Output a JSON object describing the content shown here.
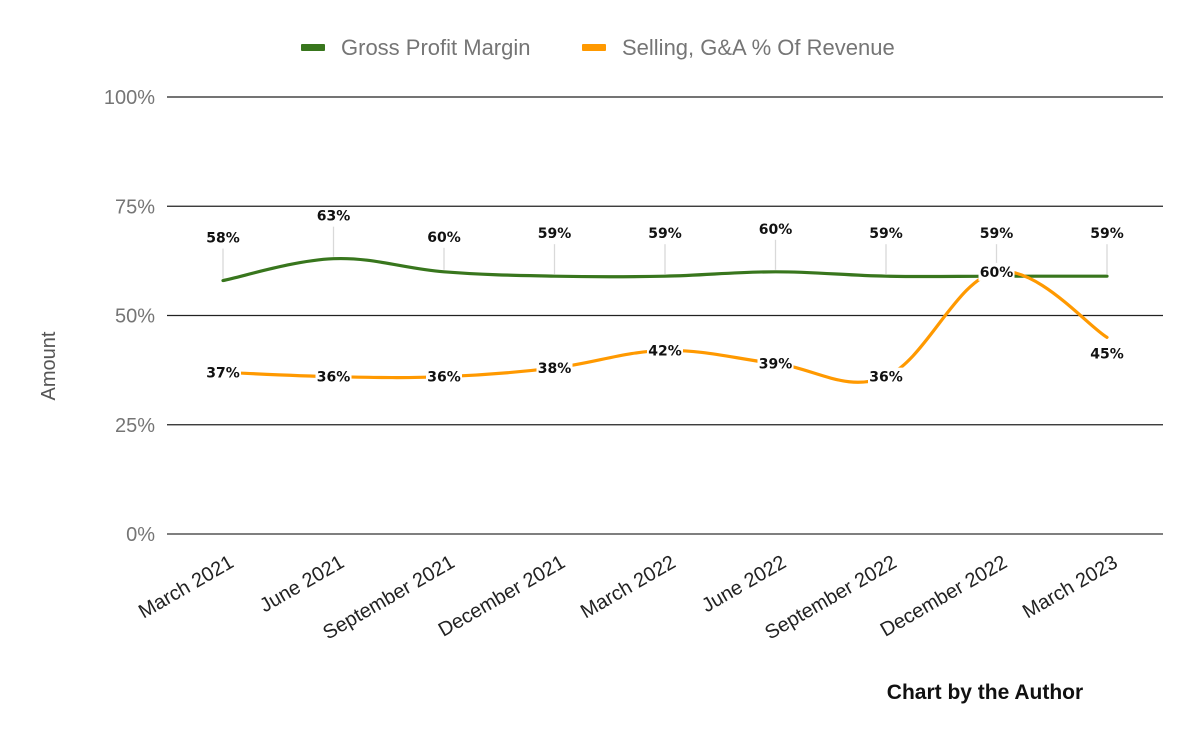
{
  "chart_data": {
    "type": "line",
    "title": "",
    "xlabel": "",
    "ylabel": "Amount",
    "ylim": [
      0,
      100
    ],
    "yticks": [
      "0%",
      "25%",
      "50%",
      "75%",
      "100%"
    ],
    "categories": [
      "March 2021",
      "June 2021",
      "September 2021",
      "December 2021",
      "March 2022",
      "June 2022",
      "September 2022",
      "December 2022",
      "March 2023"
    ],
    "series": [
      {
        "name": "Gross Profit Margin",
        "color": "#38761d",
        "values": [
          58,
          63,
          60,
          59,
          59,
          60,
          59,
          59,
          59
        ],
        "labels": [
          "58%",
          "63%",
          "60%",
          "59%",
          "59%",
          "60%",
          "59%",
          "59%",
          "59%"
        ]
      },
      {
        "name": "Selling, G&A % Of Revenue",
        "color": "#ff9900",
        "values": [
          37,
          36,
          36,
          38,
          42,
          39,
          36,
          60,
          45
        ],
        "labels": [
          "37%",
          "36%",
          "36%",
          "38%",
          "42%",
          "39%",
          "36%",
          "60%",
          "45%"
        ]
      }
    ],
    "legend_position": "top-center",
    "grid": true
  },
  "credit": "Chart by the Author"
}
